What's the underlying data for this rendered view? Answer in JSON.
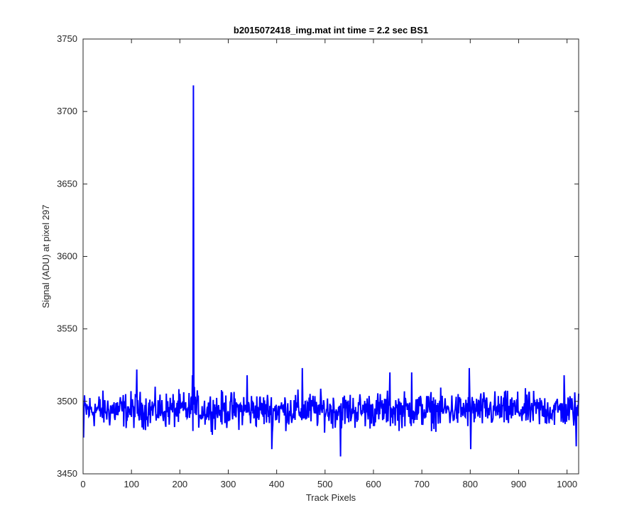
{
  "chart_data": {
    "type": "line",
    "title": "b2015072418_img.mat int time = 2.2 sec   BS1",
    "xlabel": "Track Pixels",
    "ylabel": "Signal (ADU) at pixel 297",
    "xlim": [
      0,
      1024
    ],
    "ylim": [
      3450,
      3750
    ],
    "xticks": [
      0,
      100,
      200,
      300,
      400,
      500,
      600,
      700,
      800,
      900,
      1000
    ],
    "yticks": [
      3450,
      3500,
      3550,
      3600,
      3650,
      3700,
      3750
    ],
    "grid": false,
    "legend": "none",
    "series": [
      {
        "color": "#0000ff",
        "baseline": 3494,
        "noise_amplitude": 6,
        "n_points": 1024,
        "notable_points": [
          {
            "x": 1,
            "y": 3475
          },
          {
            "x": 111,
            "y": 3522
          },
          {
            "x": 226,
            "y": 3518
          },
          {
            "x": 228,
            "y": 3718
          },
          {
            "x": 230,
            "y": 3510
          },
          {
            "x": 339,
            "y": 3518
          },
          {
            "x": 390,
            "y": 3467
          },
          {
            "x": 453,
            "y": 3523
          },
          {
            "x": 532,
            "y": 3462
          },
          {
            "x": 634,
            "y": 3520
          },
          {
            "x": 679,
            "y": 3520
          },
          {
            "x": 798,
            "y": 3523
          },
          {
            "x": 801,
            "y": 3467
          },
          {
            "x": 994,
            "y": 3518
          },
          {
            "x": 1019,
            "y": 3469
          }
        ]
      }
    ]
  }
}
